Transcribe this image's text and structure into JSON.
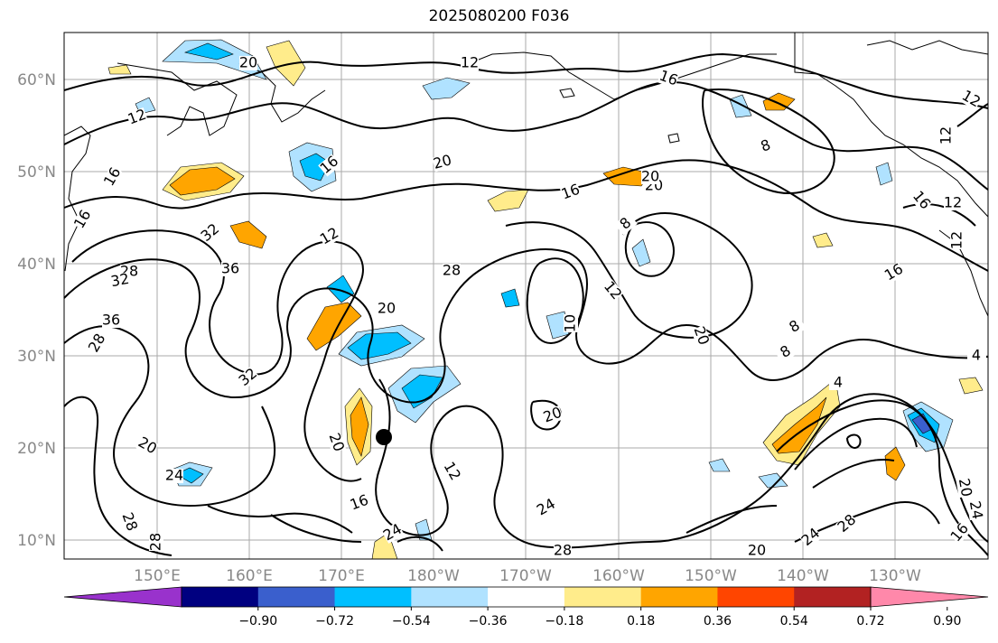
{
  "title": "2025080200 F036",
  "map": {
    "lat_labels": [
      "60°N",
      "50°N",
      "40°N",
      "30°N",
      "20°N",
      "10°N"
    ],
    "lon_labels": [
      "150°E",
      "160°E",
      "170°E",
      "180°W",
      "170°W",
      "160°W",
      "150°W",
      "140°W",
      "130°W"
    ],
    "contour_labels": [
      "20",
      "12",
      "12",
      "16",
      "12",
      "8",
      "16",
      "16",
      "16",
      "20",
      "16",
      "20",
      "12",
      "20",
      "8",
      "4",
      "32",
      "36",
      "28",
      "32",
      "12",
      "36",
      "20",
      "12",
      "8",
      "10",
      "16",
      "20",
      "12",
      "8",
      "16",
      "28",
      "32",
      "20",
      "20",
      "24",
      "28",
      "28",
      "16",
      "12",
      "24",
      "28",
      "20",
      "24",
      "28",
      "16",
      "20",
      "24",
      "4",
      "12",
      "4",
      "20",
      "28",
      "24"
    ],
    "marker": "black-dot",
    "colors": {
      "land": "#000000",
      "contour": "#000000",
      "grid": "#aaaaaa"
    }
  },
  "colorbar": {
    "ticks": [
      "−0.90",
      "−0.72",
      "−0.54",
      "−0.36",
      "−0.18",
      "0.18",
      "0.36",
      "0.54",
      "0.72",
      "0.90"
    ],
    "colors": [
      "#9932cc",
      "#000080",
      "#3a5fcd",
      "#00bfff",
      "#b0e2ff",
      "#ffffff",
      "#ffec8b",
      "#ffa500",
      "#ff4500",
      "#b22222",
      "#ff88aa"
    ]
  }
}
